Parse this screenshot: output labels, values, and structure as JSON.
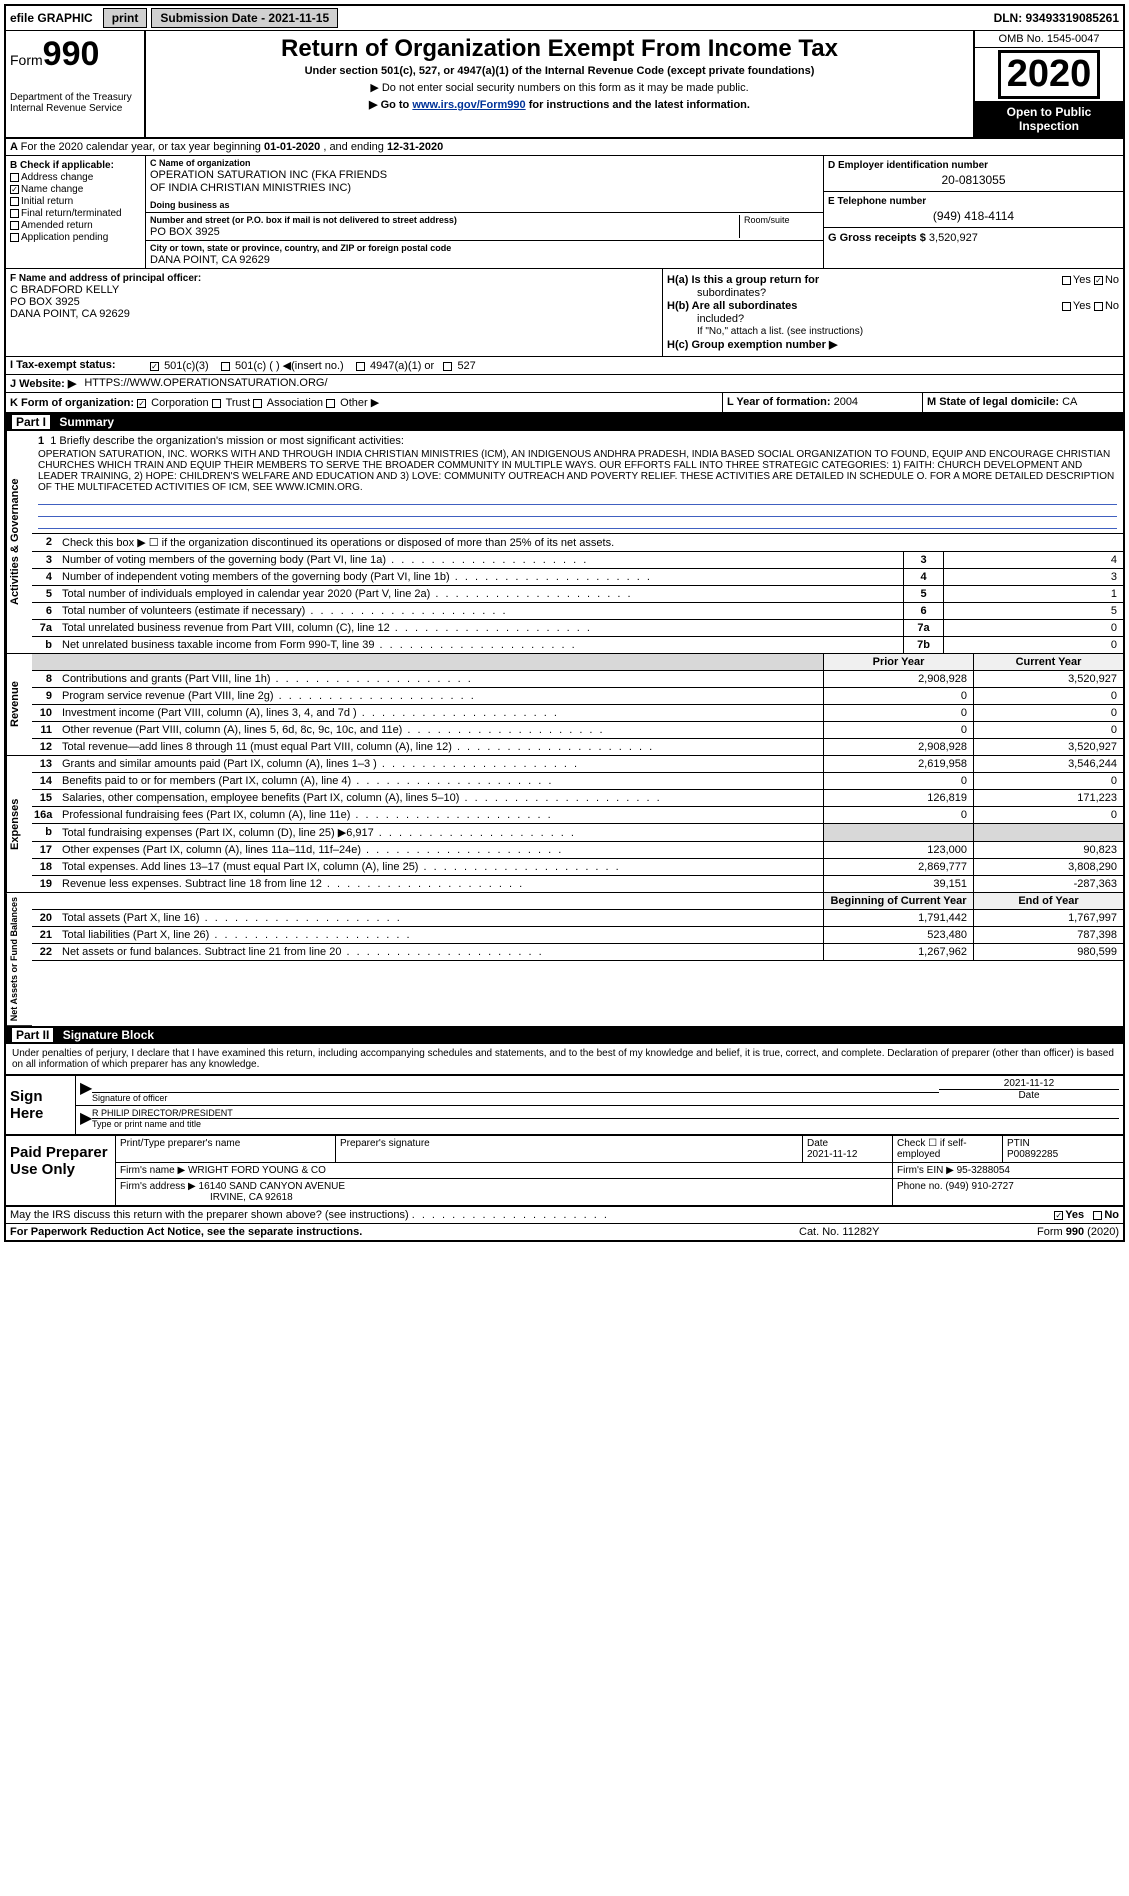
{
  "top": {
    "efile_prefix": "efile",
    "efile_word": "GRAPHIC",
    "print_btn": "print",
    "sub_date_label": "Submission Date - 2021-11-15",
    "dln": "DLN: 93493319085261"
  },
  "header": {
    "form_word": "Form",
    "form_num": "990",
    "dept": "Department of the Treasury\nInternal Revenue Service",
    "title": "Return of Organization Exempt From Income Tax",
    "subtitle": "Under section 501(c), 527, or 4947(a)(1) of the Internal Revenue Code (except private foundations)",
    "note1": "▶ Do not enter social security numbers on this form as it may be made public.",
    "note2_pre": "▶ Go to ",
    "note2_link": "www.irs.gov/Form990",
    "note2_post": " for instructions and the latest information.",
    "omb": "OMB No. 1545-0047",
    "year": "2020",
    "inspect1": "Open to Public",
    "inspect2": "Inspection"
  },
  "sectionA": {
    "label": "A",
    "text_pre": "For the 2020 calendar year, or tax year beginning ",
    "begin": "01-01-2020",
    "mid": " , and ending ",
    "end": "12-31-2020"
  },
  "colB": {
    "hdr": "B Check if applicable:",
    "items": [
      "Address change",
      "Name change",
      "Initial return",
      "Final return/terminated",
      "Amended return",
      "Application pending"
    ],
    "checked_idx": 1
  },
  "colC": {
    "name_label": "C Name of organization",
    "name1": "OPERATION SATURATION INC (FKA FRIENDS",
    "name2": "OF INDIA CHRISTIAN MINISTRIES INC)",
    "dba_label": "Doing business as",
    "addr_label": "Number and street (or P.O. box if mail is not delivered to street address)",
    "addr": "PO BOX 3925",
    "room_label": "Room/suite",
    "city_label": "City or town, state or province, country, and ZIP or foreign postal code",
    "city": "DANA POINT, CA  92629"
  },
  "colDE": {
    "d_label": "D Employer identification number",
    "d_val": "20-0813055",
    "e_label": "E Telephone number",
    "e_val": "(949) 418-4114",
    "g_label": "G Gross receipts $",
    "g_val": "3,520,927"
  },
  "colF": {
    "label": "F  Name and address of principal officer:",
    "l1": "C BRADFORD KELLY",
    "l2": "PO BOX 3925",
    "l3": "DANA POINT, CA  92629"
  },
  "colH": {
    "ha_label": "H(a)  Is this a group return for",
    "ha_label2": "subordinates?",
    "ha_yes": "Yes",
    "ha_no": "No",
    "hb_label": "H(b)  Are all subordinates",
    "hb_label2": "included?",
    "hb_note": "If \"No,\" attach a list. (see instructions)",
    "hc_label": "H(c)  Group exemption number ▶"
  },
  "rowI": {
    "label": "I  Tax-exempt status:",
    "o1": "501(c)(3)",
    "o2": "501(c) (  )  ◀(insert no.)",
    "o3": "4947(a)(1) or",
    "o4": "527"
  },
  "rowJ": {
    "label": "J  Website: ▶",
    "val": "HTTPS://WWW.OPERATIONSATURATION.ORG/"
  },
  "rowKLM": {
    "k_label": "K Form of organization:",
    "k_opts": [
      "Corporation",
      "Trust",
      "Association",
      "Other ▶"
    ],
    "l_label": "L Year of formation:",
    "l_val": "2004",
    "m_label": "M State of legal domicile:",
    "m_val": "CA"
  },
  "part1": {
    "hdr_pt": "Part I",
    "hdr_txt": "Summary",
    "tab1": "Activities & Governance",
    "tab2": "Revenue",
    "tab3": "Expenses",
    "tab4": "Net Assets or Fund Balances",
    "line1_label": "1  Briefly describe the organization's mission or most significant activities:",
    "mission": "OPERATION SATURATION, INC. WORKS WITH AND THROUGH INDIA CHRISTIAN MINISTRIES (ICM), AN INDIGENOUS ANDHRA PRADESH, INDIA BASED SOCIAL ORGANIZATION TO FOUND, EQUIP AND ENCOURAGE CHRISTIAN CHURCHES WHICH TRAIN AND EQUIP THEIR MEMBERS TO SERVE THE BROADER COMMUNITY IN MULTIPLE WAYS. OUR EFFORTS FALL INTO THREE STRATEGIC CATEGORIES: 1) FAITH: CHURCH DEVELOPMENT AND LEADER TRAINING, 2) HOPE: CHILDREN'S WELFARE AND EDUCATION AND 3) LOVE: COMMUNITY OUTREACH AND POVERTY RELIEF. THESE ACTIVITIES ARE DETAILED IN SCHEDULE O. FOR A MORE DETAILED DESCRIPTION OF THE MULTIFACETED ACTIVITIES OF ICM, SEE WWW.ICMIN.ORG.",
    "line2": "Check this box ▶ ☐ if the organization discontinued its operations or disposed of more than 25% of its net assets.",
    "rows_gov": [
      {
        "n": "3",
        "t": "Number of voting members of the governing body (Part VI, line 1a)",
        "box": "3",
        "v": "4"
      },
      {
        "n": "4",
        "t": "Number of independent voting members of the governing body (Part VI, line 1b)",
        "box": "4",
        "v": "3"
      },
      {
        "n": "5",
        "t": "Total number of individuals employed in calendar year 2020 (Part V, line 2a)",
        "box": "5",
        "v": "1"
      },
      {
        "n": "6",
        "t": "Total number of volunteers (estimate if necessary)",
        "box": "6",
        "v": "5"
      },
      {
        "n": "7a",
        "t": "Total unrelated business revenue from Part VIII, column (C), line 12",
        "box": "7a",
        "v": "0"
      },
      {
        "n": "b",
        "t": "Net unrelated business taxable income from Form 990-T, line 39",
        "box": "7b",
        "v": "0"
      }
    ],
    "col_prior": "Prior Year",
    "col_current": "Current Year",
    "rows_rev": [
      {
        "n": "8",
        "t": "Contributions and grants (Part VIII, line 1h)",
        "p": "2,908,928",
        "c": "3,520,927"
      },
      {
        "n": "9",
        "t": "Program service revenue (Part VIII, line 2g)",
        "p": "0",
        "c": "0"
      },
      {
        "n": "10",
        "t": "Investment income (Part VIII, column (A), lines 3, 4, and 7d )",
        "p": "0",
        "c": "0"
      },
      {
        "n": "11",
        "t": "Other revenue (Part VIII, column (A), lines 5, 6d, 8c, 9c, 10c, and 11e)",
        "p": "0",
        "c": "0"
      },
      {
        "n": "12",
        "t": "Total revenue—add lines 8 through 11 (must equal Part VIII, column (A), line 12)",
        "p": "2,908,928",
        "c": "3,520,927"
      }
    ],
    "rows_exp": [
      {
        "n": "13",
        "t": "Grants and similar amounts paid (Part IX, column (A), lines 1–3 )",
        "p": "2,619,958",
        "c": "3,546,244"
      },
      {
        "n": "14",
        "t": "Benefits paid to or for members (Part IX, column (A), line 4)",
        "p": "0",
        "c": "0"
      },
      {
        "n": "15",
        "t": "Salaries, other compensation, employee benefits (Part IX, column (A), lines 5–10)",
        "p": "126,819",
        "c": "171,223"
      },
      {
        "n": "16a",
        "t": "Professional fundraising fees (Part IX, column (A), line 11e)",
        "p": "0",
        "c": "0"
      },
      {
        "n": "b",
        "t": "Total fundraising expenses (Part IX, column (D), line 25) ▶6,917",
        "p": "",
        "c": "",
        "grey": true
      },
      {
        "n": "17",
        "t": "Other expenses (Part IX, column (A), lines 11a–11d, 11f–24e)",
        "p": "123,000",
        "c": "90,823"
      },
      {
        "n": "18",
        "t": "Total expenses. Add lines 13–17 (must equal Part IX, column (A), line 25)",
        "p": "2,869,777",
        "c": "3,808,290"
      },
      {
        "n": "19",
        "t": "Revenue less expenses. Subtract line 18 from line 12",
        "p": "39,151",
        "c": "-287,363"
      }
    ],
    "col_begin": "Beginning of Current Year",
    "col_end": "End of Year",
    "rows_net": [
      {
        "n": "20",
        "t": "Total assets (Part X, line 16)",
        "p": "1,791,442",
        "c": "1,767,997"
      },
      {
        "n": "21",
        "t": "Total liabilities (Part X, line 26)",
        "p": "523,480",
        "c": "787,398"
      },
      {
        "n": "22",
        "t": "Net assets or fund balances. Subtract line 21 from line 20",
        "p": "1,267,962",
        "c": "980,599"
      }
    ]
  },
  "part2": {
    "hdr_pt": "Part II",
    "hdr_txt": "Signature Block",
    "penalty": "Under penalties of perjury, I declare that I have examined this return, including accompanying schedules and statements, and to the best of my knowledge and belief, it is true, correct, and complete. Declaration of preparer (other than officer) is based on all information of which preparer has any knowledge.",
    "sign_here": "Sign Here",
    "sig_officer_label": "Signature of officer",
    "sig_date_label": "Date",
    "sig_date_val": "2021-11-12",
    "sig_name": "R PHILIP DIRECTOR/PRESIDENT",
    "sig_name_label": "Type or print name and title",
    "paid_label": "Paid Preparer Use Only",
    "prep_name_label": "Print/Type preparer's name",
    "prep_sig_label": "Preparer's signature",
    "prep_date_label": "Date",
    "prep_date_val": "2021-11-12",
    "prep_check_label": "Check ☐ if self-employed",
    "ptin_label": "PTIN",
    "ptin_val": "P00892285",
    "firm_name_label": "Firm's name    ▶",
    "firm_name": "WRIGHT FORD YOUNG & CO",
    "firm_ein_label": "Firm's EIN ▶",
    "firm_ein": "95-3288054",
    "firm_addr_label": "Firm's address ▶",
    "firm_addr1": "16140 SAND CANYON AVENUE",
    "firm_addr2": "IRVINE, CA  92618",
    "phone_label": "Phone no.",
    "phone": "(949) 910-2727",
    "discuss": "May the IRS discuss this return with the preparer shown above? (see instructions)",
    "discuss_yes": "Yes",
    "discuss_no": "No"
  },
  "footer": {
    "l": "For Paperwork Reduction Act Notice, see the separate instructions.",
    "c": "Cat. No. 11282Y",
    "r": "Form 990 (2020)"
  },
  "colors": {
    "link": "#003399",
    "blueline": "#4060c0",
    "greycell": "#d8d8d8",
    "hdrgrey": "#f0f0f0"
  }
}
